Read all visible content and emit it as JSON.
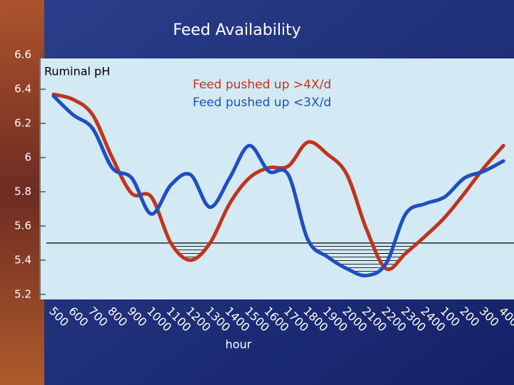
{
  "chart_data": {
    "type": "line",
    "title": "Feed Availability",
    "y_label": "Ruminal pH",
    "x_label": "hour",
    "categories": [
      "500",
      "600",
      "700",
      "800",
      "900",
      "1000",
      "1100",
      "1200",
      "1300",
      "1400",
      "1500",
      "1600",
      "1700",
      "1800",
      "1900",
      "2000",
      "2100",
      "2200",
      "2300",
      "2400",
      "100",
      "200",
      "300",
      "400"
    ],
    "series": [
      {
        "name": "Feed pushed up >4X/d",
        "color": "#c0341d",
        "values": [
          6.37,
          6.34,
          6.25,
          6.0,
          5.79,
          5.77,
          5.5,
          5.4,
          5.5,
          5.73,
          5.88,
          5.94,
          5.95,
          6.09,
          6.02,
          5.9,
          5.58,
          5.35,
          5.44,
          5.54,
          5.65,
          5.79,
          5.94,
          6.07
        ]
      },
      {
        "name": "Feed pushed up <3X/d",
        "color": "#1f4fc0",
        "values": [
          6.36,
          6.25,
          6.17,
          5.94,
          5.88,
          5.67,
          5.84,
          5.9,
          5.71,
          5.88,
          6.07,
          5.92,
          5.9,
          5.52,
          5.42,
          5.35,
          5.31,
          5.38,
          5.67,
          5.73,
          5.77,
          5.88,
          5.92,
          5.98
        ]
      }
    ],
    "reference_line": 5.5,
    "ylim": [
      5.17,
      6.58
    ],
    "yticks": [
      5.2,
      5.4,
      5.6,
      5.8,
      6,
      6.2,
      6.4,
      6.6
    ]
  }
}
